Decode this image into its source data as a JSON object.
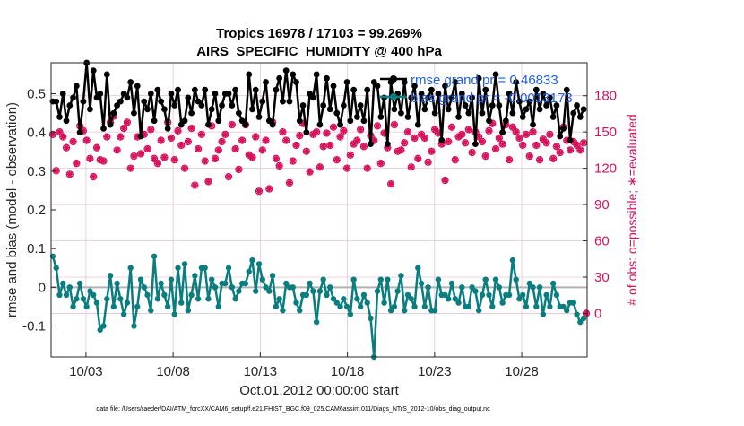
{
  "chart_data": {
    "type": "line",
    "title_line1": "Tropics 16978 / 17103 = 99.269%",
    "title_line2": "AIRS_SPECIFIC_HUMIDITY @ 400 hPa",
    "ylabel": "rmse and bias (model - observation)",
    "ylabel_right": "# of obs: o=possible; ∗=evaluated",
    "xlabel": "Oct.01,2012 00:00:00 start",
    "footnote": "data file: /Users/raeder/DAI/ATM_forcXX/CAM6_setup/f.e21.FHIST_BGC.f09_025.CAM6assim.011/Diags_NTrS_2012-10/obs_diag_output.nc",
    "x_ticks": [
      "10/03",
      "10/08",
      "10/13",
      "10/18",
      "10/23",
      "10/28"
    ],
    "x_tick_days": [
      3,
      8,
      13,
      18,
      23,
      28
    ],
    "xlim": [
      1,
      31.75
    ],
    "y_ticks": [
      "0.5",
      "0.4",
      "0.3",
      "0.2",
      "0.1",
      "0",
      "-0.1"
    ],
    "ylim": [
      -0.18,
      0.58
    ],
    "y_right_ticks": [
      "180",
      "150",
      "120",
      "90",
      "60",
      "30",
      "0"
    ],
    "ylim_right": [
      -36,
      207.2
    ],
    "grid": true,
    "legend": {
      "position": "top-right",
      "entries": [
        "rmse grand pr = 0.46833",
        "bias grand pr = -0.0013173"
      ]
    },
    "colors": {
      "rmse": "#000000",
      "bias": "#0a7d7e",
      "obs": "#d6125d",
      "zero_line": "#b3b3b3",
      "grid": "#e6c5d4"
    },
    "series": [
      {
        "name": "rmse",
        "values": [
          0.48,
          0.48,
          0.44,
          0.5,
          0.43,
          0.47,
          0.49,
          0.52,
          0.4,
          0.48,
          0.58,
          0.46,
          0.56,
          0.49,
          0.5,
          0.41,
          0.55,
          0.42,
          0.45,
          0.47,
          0.48,
          0.5,
          0.49,
          0.53,
          0.45,
          0.52,
          0.39,
          0.48,
          0.46,
          0.5,
          0.43,
          0.51,
          0.48,
          0.46,
          0.41,
          0.5,
          0.47,
          0.51,
          0.42,
          0.43,
          0.49,
          0.45,
          0.51,
          0.48,
          0.47,
          0.51,
          0.42,
          0.46,
          0.5,
          0.43,
          0.47,
          0.5,
          0.5,
          0.47,
          0.51,
          0.45,
          0.43,
          0.42,
          0.55,
          0.46,
          0.51,
          0.44,
          0.48,
          0.53,
          0.43,
          0.42,
          0.51,
          0.54,
          0.48,
          0.56,
          0.48,
          0.55,
          0.53,
          0.43,
          0.47,
          0.4,
          0.5,
          0.49,
          0.55,
          0.42,
          0.47,
          0.54,
          0.46,
          0.52,
          0.45,
          0.42,
          0.47,
          0.53,
          0.43,
          0.51,
          0.44,
          0.47,
          0.43,
          0.51,
          0.37,
          0.53,
          0.52,
          0.44,
          0.49,
          0.37,
          0.53,
          0.46,
          0.5,
          0.45,
          0.53,
          0.44,
          0.49,
          0.52,
          0.42,
          0.5,
          0.46,
          0.49,
          0.51,
          0.45,
          0.5,
          0.38,
          0.52,
          0.46,
          0.49,
          0.53,
          0.44,
          0.5,
          0.47,
          0.45,
          0.49,
          0.37,
          0.54,
          0.45,
          0.51,
          0.43,
          0.47,
          0.55,
          0.47,
          0.4,
          0.43,
          0.5,
          0.45,
          0.53,
          0.48,
          0.44,
          0.46,
          0.48,
          0.42,
          0.51,
          0.46,
          0.5,
          0.47,
          0.49,
          0.44,
          0.47,
          0.39,
          0.41,
          0.51,
          0.38,
          0.45,
          0.47,
          0.44,
          0.46
        ],
        "color": "#000000",
        "marker": "filled-circle"
      },
      {
        "name": "bias",
        "values": [
          0.08,
          0.05,
          -0.02,
          0.01,
          -0.02,
          0.0,
          -0.05,
          -0.03,
          0.01,
          -0.03,
          -0.05,
          -0.01,
          -0.02,
          -0.04,
          -0.11,
          -0.1,
          -0.03,
          0.03,
          -0.05,
          0.01,
          -0.03,
          -0.07,
          -0.04,
          0.05,
          -0.1,
          -0.05,
          0.02,
          0.0,
          -0.02,
          -0.06,
          0.08,
          -0.03,
          0.01,
          -0.02,
          -0.05,
          0.02,
          -0.07,
          0.05,
          -0.04,
          0.06,
          -0.06,
          -0.02,
          0.03,
          -0.03,
          0.05,
          0.05,
          -0.03,
          0.02,
          0.0,
          -0.05,
          0.01,
          0.01,
          0.05,
          0.0,
          -0.03,
          -0.01,
          0.01,
          0.01,
          0.04,
          0.07,
          -0.01,
          0.06,
          0.02,
          0.0,
          -0.01,
          0.03,
          -0.05,
          -0.03,
          -0.06,
          0.01,
          0.0,
          0.0,
          -0.04,
          -0.06,
          -0.02,
          -0.02,
          0.01,
          -0.01,
          -0.09,
          -0.01,
          0.02,
          -0.02,
          0.0,
          -0.03,
          -0.04,
          -0.05,
          -0.03,
          -0.05,
          -0.07,
          0.02,
          -0.03,
          -0.05,
          -0.02,
          -0.04,
          -0.08,
          -0.18,
          -0.01,
          0.02,
          -0.04,
          0.02,
          -0.06,
          -0.05,
          -0.01,
          0.03,
          -0.06,
          -0.02,
          -0.03,
          -0.05,
          0.05,
          0.01,
          -0.05,
          0.0,
          -0.06,
          -0.06,
          0.02,
          -0.02,
          -0.02,
          -0.03,
          0.01,
          -0.03,
          -0.04,
          0.0,
          -0.05,
          -0.05,
          0.0,
          -0.01,
          -0.06,
          -0.02,
          0.02,
          -0.02,
          -0.05,
          0.02,
          0.0,
          -0.04,
          -0.02,
          -0.02,
          0.07,
          0.02,
          -0.03,
          -0.02,
          -0.05,
          0.01,
          0.0,
          -0.05,
          0.0,
          -0.07,
          -0.02,
          -0.05,
          0.01,
          -0.02,
          -0.05,
          -0.05,
          -0.06,
          -0.04,
          -0.04,
          -0.07,
          -0.09,
          -0.08
        ],
        "color": "#0a7d7e",
        "marker": "filled-circle"
      },
      {
        "name": "obs_possible",
        "values": [
          148,
          118,
          150,
          146,
          137,
          115,
          142,
          124,
          155,
          151,
          143,
          128,
          113,
          137,
          127,
          126,
          146,
          158,
          163,
          135,
          146,
          153,
          158,
          120,
          130,
          146,
          132,
          148,
          136,
          152,
          128,
          124,
          143,
          129,
          158,
          145,
          127,
          151,
          139,
          120,
          142,
          153,
          106,
          136,
          148,
          126,
          109,
          155,
          128,
          135,
          142,
          148,
          113,
          156,
          136,
          119,
          143,
          156,
          131,
          129,
          146,
          101,
          135,
          143,
          103,
          158,
          128,
          122,
          150,
          143,
          108,
          126,
          139,
          147,
          157,
          134,
          117,
          148,
          150,
          121,
          138,
          149,
          139,
          154,
          127,
          146,
          151,
          120,
          131,
          140,
          143,
          152,
          138,
          120,
          147,
          143,
          155,
          124,
          149,
          137,
          107,
          156,
          134,
          135,
          141,
          150,
          121,
          145,
          128,
          148,
          145,
          125,
          134,
          152,
          149,
          140,
          110,
          142,
          154,
          127,
          146,
          148,
          141,
          152,
          133,
          150,
          146,
          142,
          130,
          151,
          157,
          136,
          145,
          140,
          156,
          127,
          154,
          150,
          145,
          139,
          148,
          130,
          150,
          139,
          127,
          144,
          141,
          148,
          128,
          138,
          133,
          154,
          143,
          135,
          142,
          139,
          135,
          141
        ],
        "color": "#d6125d",
        "marker": "open-circle"
      },
      {
        "name": "obs_evaluated",
        "values": [
          148,
          118,
          150,
          146,
          137,
          115,
          142,
          124,
          155,
          151,
          143,
          128,
          113,
          137,
          127,
          126,
          146,
          158,
          163,
          135,
          146,
          153,
          158,
          120,
          130,
          146,
          132,
          148,
          136,
          152,
          128,
          124,
          143,
          129,
          158,
          145,
          127,
          151,
          139,
          120,
          142,
          153,
          106,
          136,
          148,
          126,
          109,
          155,
          128,
          135,
          142,
          148,
          113,
          156,
          136,
          119,
          143,
          156,
          131,
          129,
          146,
          101,
          135,
          143,
          103,
          158,
          128,
          122,
          150,
          143,
          108,
          126,
          139,
          147,
          157,
          134,
          117,
          148,
          150,
          121,
          138,
          149,
          139,
          154,
          127,
          146,
          151,
          120,
          131,
          140,
          143,
          152,
          138,
          120,
          147,
          143,
          155,
          124,
          149,
          137,
          107,
          156,
          134,
          135,
          141,
          150,
          121,
          145,
          128,
          148,
          145,
          125,
          134,
          152,
          149,
          140,
          110,
          142,
          154,
          127,
          146,
          148,
          141,
          152,
          133,
          150,
          146,
          142,
          130,
          151,
          157,
          136,
          145,
          140,
          156,
          127,
          154,
          150,
          145,
          139,
          148,
          130,
          150,
          139,
          127,
          144,
          141,
          148,
          128,
          138,
          133,
          154,
          143,
          135,
          142,
          139,
          135,
          141
        ],
        "color": "#d6125d",
        "marker": "asterisk"
      }
    ],
    "extra_points": [
      {
        "name": "obs_zero",
        "day": 31.7,
        "value": 0
      }
    ]
  }
}
